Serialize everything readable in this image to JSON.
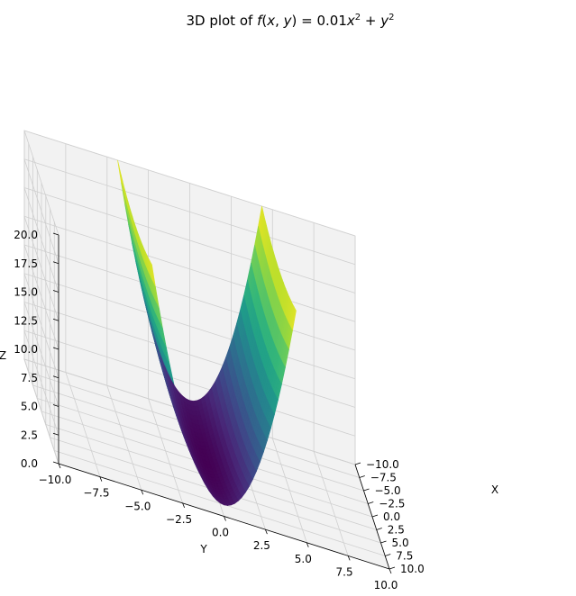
{
  "chart_data": {
    "type": "surface",
    "title": "3D plot of f(x, y) = 0.01x² + y²",
    "function": "0.01*x^2 + y^2",
    "xlabel": "X",
    "ylabel": "Y",
    "zlabel": "Z",
    "xlim": [
      -10,
      10
    ],
    "ylim": [
      -10,
      10
    ],
    "zlim": [
      0,
      20
    ],
    "x_ticks": [
      "−10.0",
      "−7.5",
      "−5.0",
      "−2.5",
      "0.0",
      "2.5",
      "5.0",
      "7.5",
      "10.0"
    ],
    "y_ticks": [
      "−10.0",
      "−7.5",
      "−5.0",
      "−2.5",
      "0.0",
      "2.5",
      "5.0",
      "7.5",
      "10.0"
    ],
    "z_ticks": [
      "0.0",
      "2.5",
      "5.0",
      "7.5",
      "10.0",
      "12.5",
      "15.0",
      "17.5",
      "20.0"
    ],
    "colormap": "viridis",
    "grid": true
  }
}
